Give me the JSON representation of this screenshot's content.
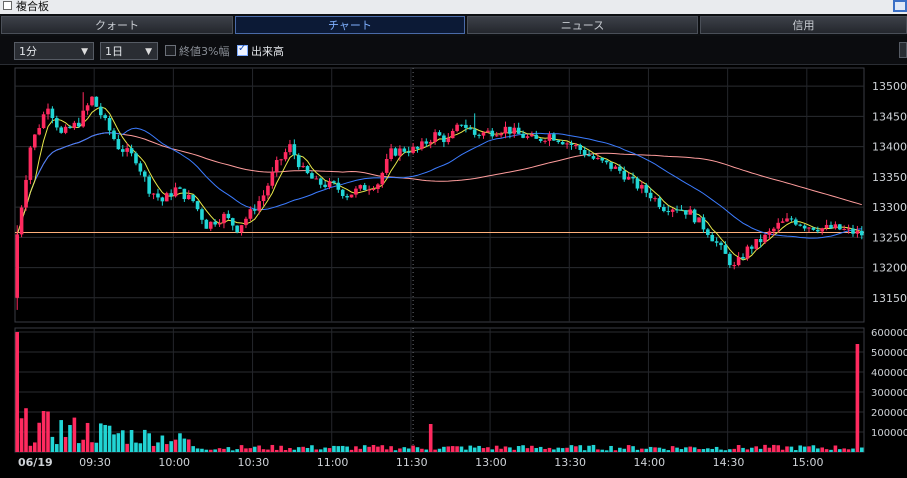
{
  "window": {
    "panel_label": "複合板"
  },
  "tabs": [
    {
      "label": "クォート",
      "active": false
    },
    {
      "label": "チャート",
      "active": true
    },
    {
      "label": "ニュース",
      "active": false
    },
    {
      "label": "信用",
      "active": false
    }
  ],
  "toolbar": {
    "interval_select": "1分",
    "period_select": "1日",
    "limit_checkbox_label": "終値3%幅",
    "limit_checkbox_checked": false,
    "volume_checkbox_label": "出来高",
    "volume_checkbox_checked": true
  },
  "colors": {
    "up": "#ff2a5f",
    "down": "#21d5d5",
    "ma_short": "#e8e84a",
    "ma_mid": "#3c7cff",
    "ma_long": "#ff9d9d",
    "ref_line": "#ffb07a"
  },
  "chart_data": {
    "type": "candlestick",
    "x_tick_labels": [
      "06/19",
      "09:30",
      "10:00",
      "10:30",
      "11:00",
      "11:30",
      "13:00",
      "13:30",
      "14:00",
      "14:30",
      "15:00"
    ],
    "price_axis": {
      "range": [
        13110,
        13530
      ],
      "ticks": [
        13500,
        13450,
        13400,
        13350,
        13300,
        13250,
        13200,
        13150
      ]
    },
    "volume_axis": {
      "range": [
        0,
        620000
      ],
      "ticks": [
        600000,
        500000,
        400000,
        300000,
        200000,
        100000
      ]
    },
    "reference_price": 13258,
    "price_path": [
      [
        0,
        13255
      ],
      [
        3,
        13400
      ],
      [
        7,
        13470
      ],
      [
        10,
        13420
      ],
      [
        14,
        13440
      ],
      [
        17,
        13480
      ],
      [
        20,
        13440
      ],
      [
        23,
        13400
      ],
      [
        27,
        13380
      ],
      [
        30,
        13330
      ],
      [
        33,
        13310
      ],
      [
        36,
        13330
      ],
      [
        40,
        13310
      ],
      [
        43,
        13270
      ],
      [
        47,
        13285
      ],
      [
        50,
        13265
      ],
      [
        53,
        13290
      ],
      [
        56,
        13320
      ],
      [
        59,
        13370
      ],
      [
        62,
        13400
      ],
      [
        65,
        13360
      ],
      [
        68,
        13340
      ],
      [
        72,
        13335
      ],
      [
        75,
        13320
      ],
      [
        78,
        13330
      ],
      [
        82,
        13340
      ],
      [
        85,
        13390
      ],
      [
        88,
        13395
      ],
      [
        91,
        13395
      ],
      [
        95,
        13420
      ],
      [
        98,
        13410
      ],
      [
        101,
        13440
      ],
      [
        104,
        13420
      ],
      [
        108,
        13425
      ],
      [
        111,
        13430
      ],
      [
        114,
        13420
      ],
      [
        118,
        13410
      ],
      [
        121,
        13420
      ],
      [
        124,
        13410
      ],
      [
        127,
        13400
      ],
      [
        131,
        13380
      ],
      [
        134,
        13370
      ],
      [
        137,
        13360
      ],
      [
        140,
        13340
      ],
      [
        144,
        13320
      ],
      [
        147,
        13300
      ],
      [
        150,
        13300
      ],
      [
        153,
        13290
      ],
      [
        157,
        13260
      ],
      [
        160,
        13230
      ],
      [
        163,
        13200
      ],
      [
        166,
        13230
      ],
      [
        170,
        13250
      ],
      [
        173,
        13270
      ],
      [
        176,
        13280
      ],
      [
        179,
        13270
      ],
      [
        183,
        13265
      ],
      [
        186,
        13265
      ],
      [
        189,
        13260
      ],
      [
        192,
        13255
      ]
    ],
    "volume_spikes": [
      {
        "bar": 0,
        "value": 600000
      },
      {
        "bar": 94,
        "value": 140000
      },
      {
        "bar": 191,
        "value": 540000
      }
    ]
  }
}
